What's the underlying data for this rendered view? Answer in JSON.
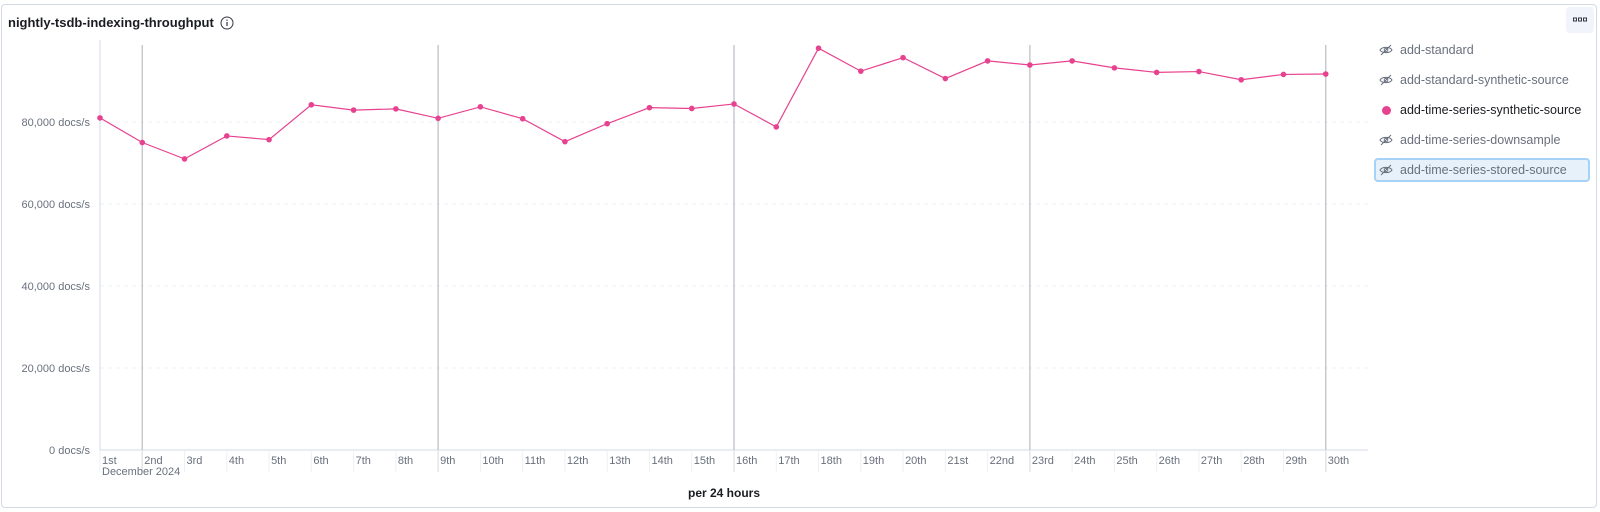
{
  "panel": {
    "title": "nightly-tsdb-indexing-throughput"
  },
  "icons": {
    "info": "info-circle-icon",
    "panel_menu": "panel-options-icon",
    "hidden_series": "eye-closed-icon"
  },
  "colors": {
    "series": "#e7428f",
    "grid": "#eef0f4",
    "axis": "#d3dae6",
    "week_marker": "#c4c6cc",
    "focus": "#a6d2f7"
  },
  "legend": {
    "items": [
      {
        "label": "add-standard",
        "hidden": true
      },
      {
        "label": "add-standard-synthetic-source",
        "hidden": true
      },
      {
        "label": "add-time-series-synthetic-source",
        "hidden": false
      },
      {
        "label": "add-time-series-downsample",
        "hidden": true
      },
      {
        "label": "add-time-series-stored-source",
        "hidden": true,
        "focused": true
      }
    ]
  },
  "chart_data": {
    "type": "line",
    "xlabel": "per 24 hours",
    "x_month_label": "December 2024",
    "ylabel": "",
    "ylim": [
      0,
      100000
    ],
    "y_ticks": [
      {
        "value": 0,
        "label": "0 docs/s"
      },
      {
        "value": 20000,
        "label": "20,000 docs/s"
      },
      {
        "value": 40000,
        "label": "40,000 docs/s"
      },
      {
        "value": 60000,
        "label": "60,000 docs/s"
      },
      {
        "value": 80000,
        "label": "80,000 docs/s"
      }
    ],
    "categories": [
      "1st",
      "2nd",
      "3rd",
      "4th",
      "5th",
      "6th",
      "7th",
      "8th",
      "9th",
      "10th",
      "11th",
      "12th",
      "13th",
      "14th",
      "15th",
      "16th",
      "17th",
      "18th",
      "19th",
      "20th",
      "21st",
      "22nd",
      "23rd",
      "24th",
      "25th",
      "26th",
      "27th",
      "28th",
      "29th",
      "30th"
    ],
    "week_markers": [
      "2nd",
      "9th",
      "16th",
      "23rd",
      "30th"
    ],
    "series": [
      {
        "name": "add-time-series-synthetic-source",
        "values": [
          81000,
          75000,
          71000,
          76600,
          75700,
          84200,
          82900,
          83200,
          80900,
          83700,
          80800,
          75200,
          79600,
          83500,
          83300,
          84400,
          78800,
          98000,
          92400,
          95700,
          90600,
          94900,
          93900,
          94900,
          93200,
          92100,
          92300,
          90300,
          91600,
          91700
        ]
      }
    ]
  }
}
